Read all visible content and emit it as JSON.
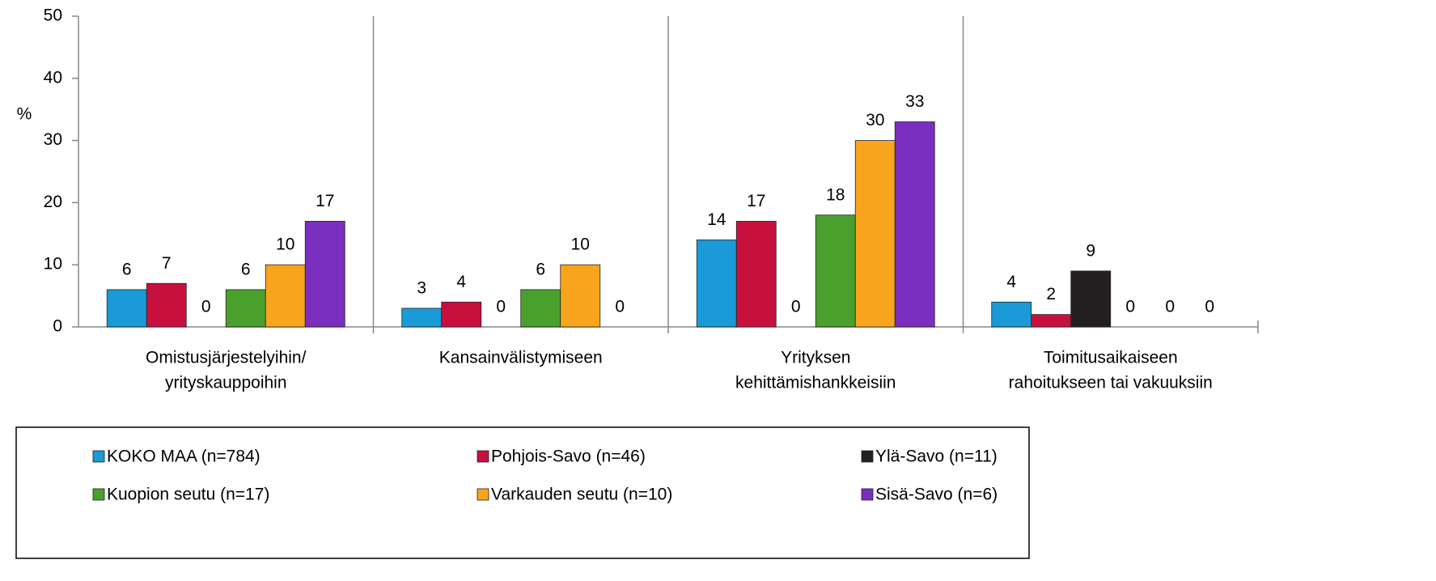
{
  "chart_data": {
    "type": "bar",
    "y_label": "%",
    "categories": [
      [
        "Omistusjärjestelyihin/",
        "yrityskauppoihin"
      ],
      [
        "Kansainvälistymiseen"
      ],
      [
        "Yrityksen",
        "kehittämishankkeisiin"
      ],
      [
        "Toimitusaikaiseen",
        "rahoitukseen tai vakuuksiin"
      ]
    ],
    "series": [
      {
        "name": "KOKO MAA (n=784)",
        "color": "#1a9ad6",
        "values": [
          6,
          3,
          14,
          4
        ]
      },
      {
        "name": "Pohjois-Savo (n=46)",
        "color": "#c8103e",
        "values": [
          7,
          4,
          17,
          2
        ]
      },
      {
        "name": "Ylä-Savo (n=11)",
        "color": "#231f20",
        "values": [
          0,
          0,
          0,
          9
        ]
      },
      {
        "name": "Kuopion seutu (n=17)",
        "color": "#4aa02c",
        "values": [
          6,
          6,
          18,
          0
        ]
      },
      {
        "name": "Varkauden seutu (n=10)",
        "color": "#f8a41c",
        "values": [
          10,
          10,
          30,
          0
        ]
      },
      {
        "name": "Sisä-Savo (n=6)",
        "color": "#7a2fbe",
        "values": [
          17,
          0,
          33,
          0
        ]
      }
    ],
    "ylim": [
      0,
      50
    ],
    "yticks": [
      0,
      10,
      20,
      30,
      40,
      50
    ],
    "legend": "bottom"
  }
}
